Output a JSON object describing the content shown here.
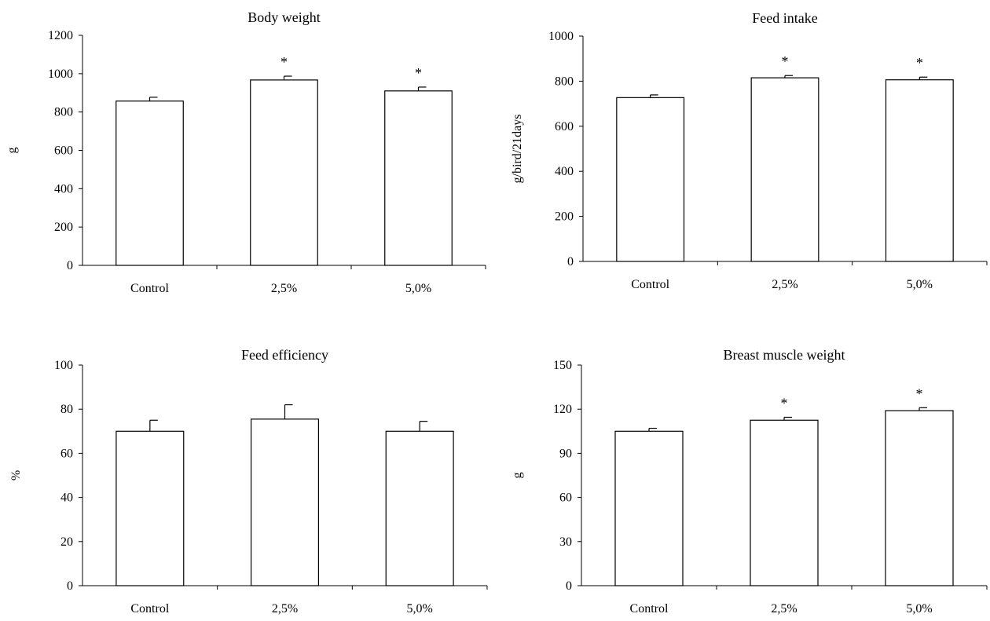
{
  "chart_data": [
    {
      "type": "bar",
      "title": "Body weight",
      "ylabel": "g",
      "xlabel": "",
      "categories": [
        "Control",
        "2,5%",
        "5,0%"
      ],
      "values": [
        857,
        967,
        910
      ],
      "errors": [
        20,
        20,
        20
      ],
      "significance": [
        "",
        "*",
        "*"
      ],
      "ylim": [
        0,
        1200
      ],
      "yticks": [
        0,
        200,
        400,
        600,
        800,
        1000,
        1200
      ]
    },
    {
      "type": "bar",
      "title": "Feed intake",
      "ylabel": "g/bird/21days",
      "xlabel": "",
      "categories": [
        "Control",
        "2,5%",
        "5,0%"
      ],
      "values": [
        727,
        815,
        806
      ],
      "errors": [
        12,
        10,
        12
      ],
      "significance": [
        "",
        "*",
        "*"
      ],
      "ylim": [
        0,
        1000
      ],
      "yticks": [
        0,
        200,
        400,
        600,
        800,
        1000
      ]
    },
    {
      "type": "bar",
      "title": "Feed efficiency",
      "ylabel": "%",
      "xlabel": "",
      "categories": [
        "Control",
        "2,5%",
        "5,0%"
      ],
      "values": [
        70,
        75.5,
        70
      ],
      "errors": [
        5,
        6.5,
        4.5
      ],
      "significance": [
        "",
        "",
        ""
      ],
      "ylim": [
        0,
        100
      ],
      "yticks": [
        0,
        20,
        40,
        60,
        80,
        100
      ]
    },
    {
      "type": "bar",
      "title": "Breast muscle weight",
      "ylabel": "g",
      "xlabel": "",
      "categories": [
        "Control",
        "2,5%",
        "5,0%"
      ],
      "values": [
        105,
        112.5,
        119
      ],
      "errors": [
        2,
        2,
        2
      ],
      "significance": [
        "",
        "*",
        "*"
      ],
      "ylim": [
        0,
        150
      ],
      "yticks": [
        0,
        30,
        60,
        90,
        120,
        150
      ]
    }
  ]
}
